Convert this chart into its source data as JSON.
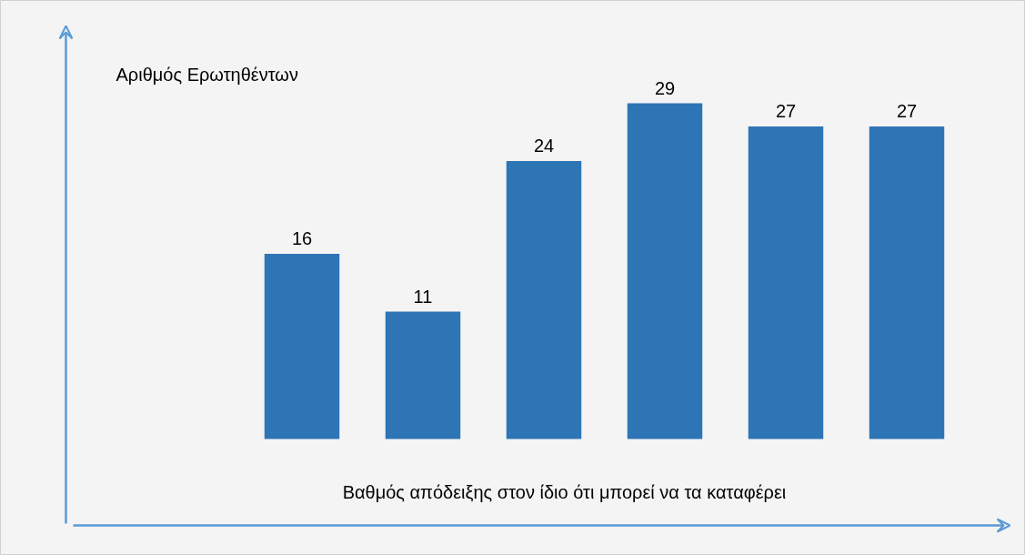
{
  "chart_data": {
    "type": "bar",
    "categories": [
      null,
      null,
      null,
      null,
      null,
      null
    ],
    "values": [
      16,
      11,
      24,
      29,
      27,
      27
    ],
    "color": "#2e75b6",
    "relative": false,
    "data_labels": true,
    "ylabel": "Αριθμός Ερωτηθέντων",
    "xlabel": "Βαθμός απόδειξης στον ίδιο ότι μπορεί να τα καταφέρει",
    "grid": false
  }
}
